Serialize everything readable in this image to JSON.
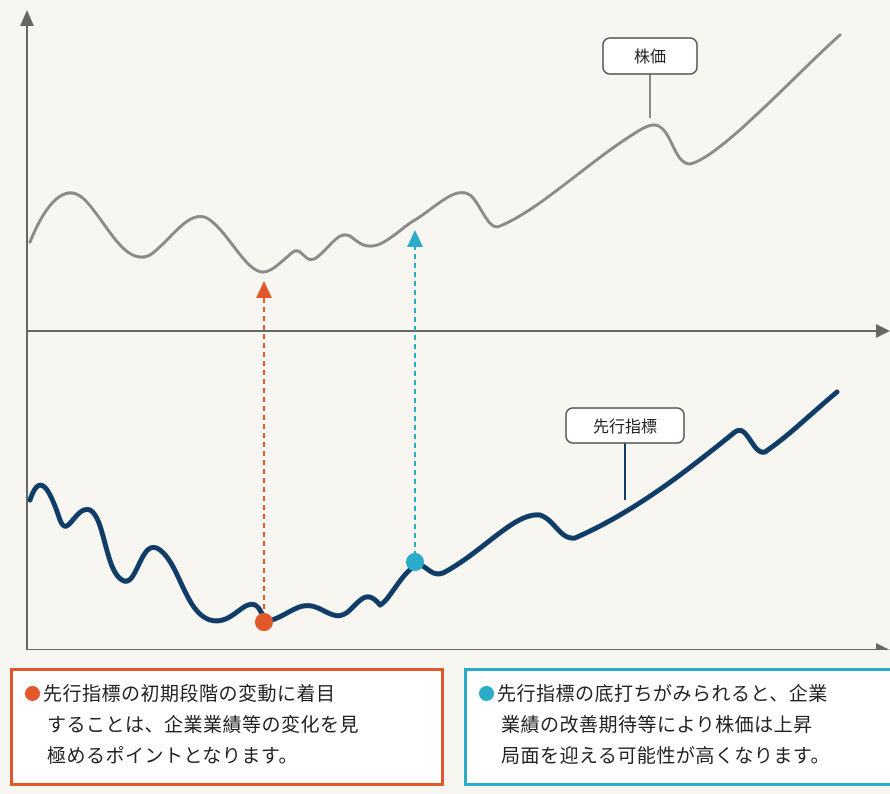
{
  "labels": {
    "stock_price": "株価",
    "leading_indicator": "先行指標"
  },
  "callouts": {
    "left": {
      "lines": [
        "先行指標の初期段階の変動に着目",
        "することは、企業業績等の変化を見",
        "極めるポイントとなります。"
      ]
    },
    "right": {
      "lines": [
        "先行指標の底打ちがみられると、企業",
        "業績の改善期待等により株価は上昇",
        "局面を迎える可能性が高くなります。"
      ]
    }
  },
  "colors": {
    "background": "#f8f6f0",
    "axis": "#666666",
    "stock_line": "#8a8a8a",
    "indicator_line": "#0f3d68",
    "orange": "#e2582a",
    "teal": "#2aabc8"
  }
}
